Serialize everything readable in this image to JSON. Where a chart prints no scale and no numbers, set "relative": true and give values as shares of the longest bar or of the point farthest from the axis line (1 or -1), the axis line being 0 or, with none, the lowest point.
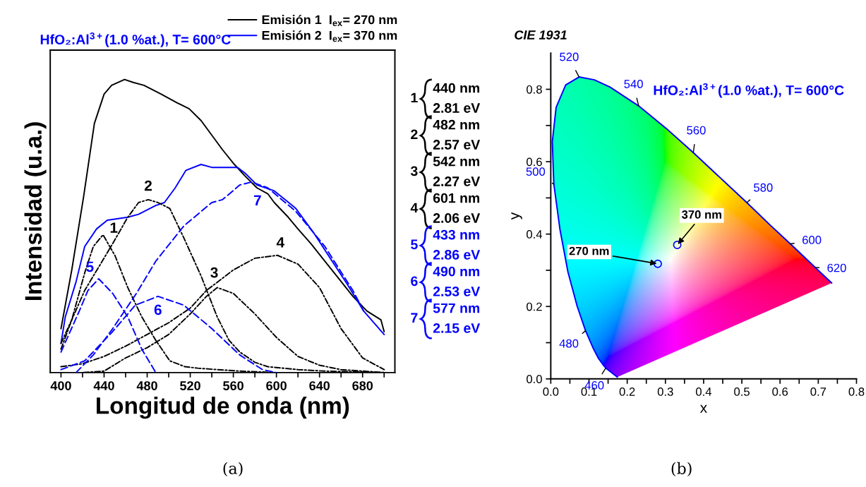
{
  "chart_data": [
    {
      "type": "line",
      "title": "HfO₂:Al$^{3+}$(1.0 %at.), T= 600°C",
      "xlabel": "Longitud de onda (nm)",
      "ylabel": "Intensidad (u.a.)",
      "relative": true,
      "tick_labels": "x",
      "grid": false,
      "legend": "top right",
      "xlim": [
        390,
        710
      ],
      "xticks": [
        400,
        {
          "value": 420,
          "label": null
        },
        440,
        {
          "value": 460,
          "label": null
        },
        480,
        {
          "value": 500,
          "label": null
        },
        520,
        {
          "value": 540,
          "label": null
        },
        560,
        {
          "value": 580,
          "label": null
        },
        600,
        {
          "value": 620,
          "label": null
        },
        640,
        {
          "value": 660,
          "label": null
        },
        680,
        {
          "value": 700,
          "label": null
        }
      ],
      "series": [
        {
          "name": "Emisión 1  I$_{ex}$= 270 nm",
          "color": "#000000",
          "line_style": "solid",
          "x": [
            400,
            410,
            421,
            431,
            440,
            447,
            459,
            467,
            477,
            493,
            508,
            519,
            530,
            540,
            550,
            561,
            571,
            582,
            592,
            598,
            611,
            620,
            632,
            645,
            658,
            671,
            684,
            697,
            700
          ],
          "values": [
            0.15,
            0.35,
            0.6,
            0.85,
            0.95,
            0.98,
            1.0,
            0.99,
            0.98,
            0.95,
            0.92,
            0.9,
            0.86,
            0.81,
            0.76,
            0.71,
            0.67,
            0.63,
            0.61,
            0.58,
            0.53,
            0.49,
            0.44,
            0.38,
            0.32,
            0.26,
            0.21,
            0.18,
            0.14
          ]
        },
        {
          "name": "Emisión 2  I$_{ex}$= 370 nm",
          "color": "#0000ff",
          "line_style": "solid",
          "x": [
            400,
            404,
            414,
            422,
            433,
            443,
            462,
            472,
            488,
            496,
            506,
            516,
            530,
            540,
            553,
            564,
            571,
            582,
            598,
            608,
            618,
            634,
            650,
            666,
            681,
            700
          ],
          "values": [
            0.1,
            0.19,
            0.31,
            0.43,
            0.49,
            0.52,
            0.53,
            0.54,
            0.57,
            0.58,
            0.63,
            0.69,
            0.71,
            0.7,
            0.7,
            0.7,
            0.68,
            0.64,
            0.62,
            0.59,
            0.56,
            0.48,
            0.39,
            0.3,
            0.21,
            0.13
          ]
        },
        {
          "color": "#000000",
          "line_style": "dashdot",
          "x": [
            400,
            410,
            422,
            430,
            439,
            450,
            462,
            475,
            488,
            501,
            515,
            527,
            545,
            566,
            600,
            650,
            700
          ],
          "values": [
            0.08,
            0.18,
            0.34,
            0.43,
            0.47,
            0.4,
            0.29,
            0.19,
            0.11,
            0.04,
            0.02,
            0.015,
            0.01,
            0.005,
            0.0,
            0.0,
            0.0
          ]
        },
        {
          "color": "#000000",
          "line_style": "dashdot",
          "x": [
            400,
            410,
            422,
            435,
            448,
            462,
            472,
            481,
            490,
            501,
            514,
            530,
            545,
            556,
            566,
            580,
            592,
            620,
            645,
            700
          ],
          "values": [
            0.1,
            0.18,
            0.28,
            0.36,
            0.44,
            0.53,
            0.58,
            0.59,
            0.58,
            0.56,
            0.46,
            0.33,
            0.19,
            0.11,
            0.07,
            0.035,
            0.02,
            0.01,
            0.005,
            0.0
          ]
        },
        {
          "color": "#000000",
          "line_style": "dashdot",
          "x": [
            400,
            420,
            440,
            460,
            480,
            500,
            520,
            535,
            545,
            560,
            580,
            600,
            620,
            640,
            660,
            680,
            700
          ],
          "values": [
            0.0,
            0.0,
            0.005,
            0.05,
            0.085,
            0.13,
            0.2,
            0.26,
            0.29,
            0.27,
            0.2,
            0.12,
            0.055,
            0.025,
            0.01,
            0.005,
            0.0
          ]
        },
        {
          "color": "#000000",
          "line_style": "dashdot",
          "x": [
            400,
            420,
            440,
            460,
            480,
            500,
            520,
            535,
            560,
            580,
            601,
            620,
            640,
            660,
            680,
            700
          ],
          "values": [
            0.02,
            0.03,
            0.055,
            0.09,
            0.13,
            0.17,
            0.22,
            0.28,
            0.35,
            0.39,
            0.4,
            0.37,
            0.29,
            0.15,
            0.05,
            0.01
          ]
        },
        {
          "color": "#0000ff",
          "line_style": "dashed",
          "x": [
            400,
            417,
            425,
            435,
            448,
            462,
            475,
            488
          ],
          "values": [
            0.07,
            0.21,
            0.28,
            0.32,
            0.27,
            0.19,
            0.08,
            0.0
          ]
        },
        {
          "color": "#0000ff",
          "line_style": "dashed",
          "x": [
            400,
            422,
            448,
            469,
            490,
            514,
            540,
            566,
            587,
            600
          ],
          "values": [
            0.01,
            0.04,
            0.14,
            0.23,
            0.26,
            0.23,
            0.15,
            0.06,
            0.01,
            0.0
          ]
        },
        {
          "color": "#0000ff",
          "line_style": "dashed",
          "x": [
            414,
            430,
            448,
            470,
            488,
            514,
            540,
            550,
            566,
            577,
            592,
            618,
            645,
            671,
            681
          ],
          "values": [
            0.0,
            0.06,
            0.15,
            0.27,
            0.38,
            0.5,
            0.58,
            0.59,
            0.64,
            0.65,
            0.63,
            0.55,
            0.43,
            0.28,
            0.21
          ]
        }
      ],
      "annotations": [
        {
          "text": "1",
          "x": 439,
          "y": 0.47
        },
        {
          "text": "2",
          "x": 481,
          "y": 0.59
        },
        {
          "text": "3",
          "x": 545,
          "y": 0.29
        },
        {
          "text": "4",
          "x": 601,
          "y": 0.4
        },
        {
          "text": "5",
          "x": 435,
          "y": 0.32
        },
        {
          "text": "6",
          "x": 490,
          "y": 0.26
        },
        {
          "text": "7",
          "x": 577,
          "y": 0.65
        },
        "1",
        "440 nm",
        "2.81 eV",
        "2",
        "482 nm",
        "2.57 eV",
        "3",
        "542 nm",
        "2.27 eV",
        "4",
        "601 nm",
        "2.06 eV",
        "5",
        "433 nm",
        "2.86 eV",
        "6",
        "490 nm",
        "2.53 eV",
        "7",
        "577 nm",
        "2.15 eV",
        "(a)"
      ]
    },
    {
      "type": "line",
      "title": "CIE 1931",
      "xlabel": "x",
      "ylabel": "y",
      "grid": false,
      "legend": false,
      "xlim": [
        0.0,
        0.8
      ],
      "xticks": [
        {
          "value": 0,
          "label": "0.0"
        },
        {
          "value": 0.05,
          "label": null
        },
        0.1,
        {
          "value": 0.15,
          "label": null
        },
        0.2,
        {
          "value": 0.25,
          "label": null
        },
        0.3,
        {
          "value": 0.35,
          "label": null
        },
        0.4,
        {
          "value": 0.45,
          "label": null
        },
        0.5,
        {
          "value": 0.55,
          "label": null
        },
        0.6,
        {
          "value": 0.65,
          "label": null
        },
        0.7,
        {
          "value": 0.75,
          "label": null
        },
        0.8
      ],
      "ylim": [
        0.0,
        0.9
      ],
      "yticks": [
        {
          "value": 0,
          "label": "0.0"
        },
        {
          "value": 0.1,
          "label": null
        },
        0.2,
        {
          "value": 0.3,
          "label": null
        },
        0.4,
        {
          "value": 0.5,
          "label": null
        },
        0.6,
        {
          "value": 0.7,
          "label": null
        },
        0.8
      ],
      "series": [
        {
          "type": "line",
          "color": "#0000ff",
          "line_style": "solid",
          "x": [
            0.174,
            0.144,
            0.136,
            0.124,
            0.11,
            0.091,
            0.069,
            0.045,
            0.024,
            0.008,
            0.004,
            0.014,
            0.039,
            0.074,
            0.114,
            0.155,
            0.23,
            0.302,
            0.373,
            0.444,
            0.513,
            0.575,
            0.627,
            0.666,
            0.692,
            0.719,
            0.735
          ],
          "values": [
            0.005,
            0.03,
            0.04,
            0.058,
            0.087,
            0.133,
            0.201,
            0.295,
            0.413,
            0.538,
            0.655,
            0.75,
            0.812,
            0.834,
            0.826,
            0.806,
            0.754,
            0.692,
            0.625,
            0.555,
            0.487,
            0.424,
            0.373,
            0.334,
            0.308,
            0.281,
            0.265
          ]
        },
        {
          "type": "scatter",
          "color": "#0000ff",
          "marker": "circle",
          "x": [
            0.28,
            0.331
          ],
          "values": [
            0.318,
            0.37
          ]
        }
      ],
      "annotations": [
        {
          "text": "270 nm",
          "x": 0.28,
          "y": 0.318
        },
        {
          "text": "370 nm",
          "x": 0.331,
          "y": 0.37
        },
        {
          "text": "460",
          "x": 0.144,
          "y": 0.03
        },
        {
          "text": "480",
          "x": 0.091,
          "y": 0.133
        },
        {
          "text": "500",
          "x": 0.008,
          "y": 0.538
        },
        {
          "text": "520",
          "x": 0.074,
          "y": 0.834
        },
        {
          "text": "540",
          "x": 0.23,
          "y": 0.754
        },
        {
          "text": "560",
          "x": 0.373,
          "y": 0.625
        },
        {
          "text": "580",
          "x": 0.513,
          "y": 0.487
        },
        {
          "text": "600",
          "x": 0.627,
          "y": 0.373
        },
        {
          "text": "620",
          "x": 0.692,
          "y": 0.308
        },
        "HfO₂:Al$^{3+}$(1.0 %at.), T= 600°C",
        "(b)"
      ]
    }
  ]
}
